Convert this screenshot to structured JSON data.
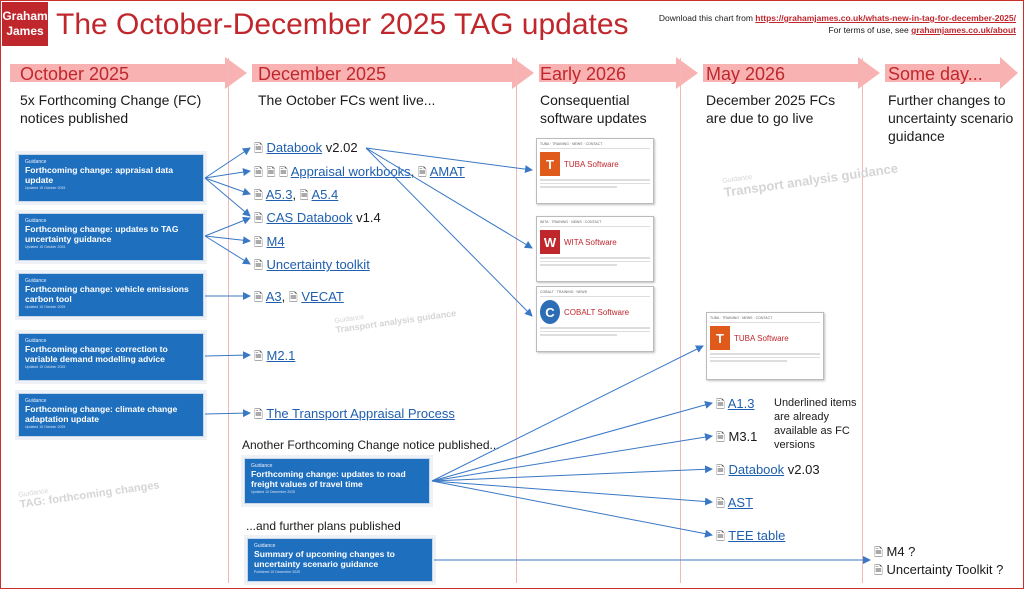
{
  "header": {
    "logo_line1": "Graham",
    "logo_line2": "James",
    "title": "The October-December 2025 TAG updates",
    "download_prefix": "Download this chart from ",
    "download_url": "https://grahamjames.co.uk/whats-new-in-tag-for-december-2025/",
    "terms_prefix": "For terms of use, see ",
    "terms_url": "grahamjames.co.uk/about"
  },
  "columns": [
    {
      "heading": "October 2025",
      "desc": "5x Forthcoming Change (FC) notices published"
    },
    {
      "heading": "December 2025",
      "desc": "The October FCs went live..."
    },
    {
      "heading": "Early 2026",
      "desc": "Consequential software updates"
    },
    {
      "heading": "May 2026",
      "desc": "December 2025 FCs are due to go live"
    },
    {
      "heading": "Some day...",
      "desc": "Further changes to uncertainty scenario guidance"
    }
  ],
  "october_cards": [
    {
      "label": "Guidance",
      "title": "Forthcoming change: appraisal data update",
      "date": "Updated 15 October 2025"
    },
    {
      "label": "Guidance",
      "title": "Forthcoming change: updates to TAG uncertainty guidance",
      "date": "Updated 15 October 2025"
    },
    {
      "label": "Guidance",
      "title": "Forthcoming change: vehicle emissions carbon tool",
      "date": "Updated 15 October 2025"
    },
    {
      "label": "Guidance",
      "title": "Forthcoming change: correction to variable demand modelling advice",
      "date": "Updated 15 October 2025"
    },
    {
      "label": "Guidance",
      "title": "Forthcoming change: climate change adaptation update",
      "date": "Updated 15 October 2025"
    }
  ],
  "december_items": [
    {
      "link": "Databook",
      "suffix": " v2.02"
    },
    {
      "link": "Appraisal workbooks",
      "mid": ", ",
      "link2": "AMAT"
    },
    {
      "link": "A5.3",
      "mid": ", ",
      "link2": "A5.4"
    },
    {
      "link": "CAS Databook",
      "suffix": " v1.4"
    },
    {
      "link": "M4"
    },
    {
      "link": "Uncertainty toolkit"
    },
    {
      "link": "A3",
      "mid": ", ",
      "link2": "VECAT"
    },
    {
      "link": "M2.1"
    },
    {
      "link": "The Transport Appraisal Process"
    }
  ],
  "another_notice": "Another Forthcoming Change notice published...",
  "dec_card": {
    "label": "Guidance",
    "title": "Forthcoming change: updates to road freight values of travel time",
    "date": "Updated 10 December 2025"
  },
  "further_plans": "...and further plans published",
  "summary_card": {
    "label": "Guidance",
    "title": "Summary of upcoming changes to uncertainty scenario guidance",
    "date": "Published 10 December 2025"
  },
  "software": [
    {
      "name": "TUBA Software",
      "letter": "T",
      "color": "#e05a1c"
    },
    {
      "name": "WITA Software",
      "letter": "W",
      "color": "#c0272d"
    },
    {
      "name": "COBALT Software",
      "letter": "C",
      "color": "#2d6db5"
    }
  ],
  "may_software": {
    "name": "TUBA Software",
    "letter": "T",
    "color": "#e05a1c"
  },
  "may_items": [
    {
      "link": "A1.3"
    },
    {
      "plain": "M3.1"
    },
    {
      "link": "Databook",
      "suffix": " v2.03"
    },
    {
      "link": "AST"
    },
    {
      "link": "TEE table"
    }
  ],
  "underline_note": "Underlined items are already available as FC versions",
  "someday_items": [
    "M4 ?",
    "Uncertainty Toolkit ?"
  ],
  "ghosts": [
    {
      "label": "Guidance",
      "title": "Transport analysis guidance"
    },
    {
      "label": "Guidance",
      "title": "Transport analysis guidance"
    },
    {
      "label": "Guidance",
      "title": "TAG: forthcoming changes"
    }
  ],
  "colors": {
    "accent": "#c0272d",
    "card": "#1f6fbf",
    "link": "#1f5fae",
    "arrow": "#f6a5a5"
  }
}
